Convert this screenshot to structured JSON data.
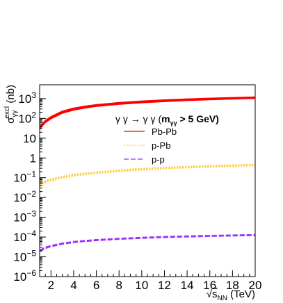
{
  "chart_data": {
    "type": "line",
    "title": "",
    "xlabel": "√s_NN (TeV)",
    "ylabel": "σ_γγ^excl (nb)",
    "xlim": [
      1,
      20
    ],
    "ylim": [
      1e-06,
      5000
    ],
    "yscale": "log",
    "x_ticks": [
      2,
      4,
      6,
      8,
      10,
      12,
      14,
      16,
      18,
      20
    ],
    "y_tick_labels": [
      {
        "value": 1e-06,
        "base": "10",
        "exp": "−6"
      },
      {
        "value": 1e-05,
        "base": "10",
        "exp": "−5"
      },
      {
        "value": 0.0001,
        "base": "10",
        "exp": "−4"
      },
      {
        "value": 0.001,
        "base": "10",
        "exp": "−3"
      },
      {
        "value": 0.01,
        "base": "10",
        "exp": "−2"
      },
      {
        "value": 0.1,
        "base": "10",
        "exp": "−1"
      },
      {
        "value": 1,
        "base": "1",
        "exp": ""
      },
      {
        "value": 10,
        "base": "10",
        "exp": ""
      },
      {
        "value": 100,
        "base": "10",
        "exp": "2"
      },
      {
        "value": 1000,
        "base": "10",
        "exp": "3"
      }
    ],
    "legend": {
      "title": "γ γ → γ γ (m_γγ > 5 GeV)",
      "position": "upper-center"
    },
    "series": [
      {
        "name": "Pb-Pb",
        "color": "#ff0000",
        "style": "solid",
        "x": [
          1,
          1.5,
          2,
          3,
          4,
          5,
          6,
          8,
          10,
          12,
          14,
          16,
          18,
          20
        ],
        "low": [
          28,
          60,
          95,
          180,
          260,
          330,
          400,
          510,
          610,
          700,
          790,
          870,
          940,
          1010
        ],
        "high": [
          38,
          80,
          125,
          235,
          335,
          420,
          500,
          640,
          760,
          870,
          970,
          1060,
          1140,
          1220
        ]
      },
      {
        "name": "p-Pb",
        "color": "#ffcc33",
        "style": "dotted",
        "x": [
          1,
          1.5,
          2,
          3,
          4,
          5,
          6,
          8,
          10,
          12,
          14,
          16,
          18,
          20
        ],
        "low": [
          0.038,
          0.055,
          0.07,
          0.095,
          0.12,
          0.14,
          0.16,
          0.2,
          0.24,
          0.28,
          0.31,
          0.34,
          0.37,
          0.4
        ],
        "high": [
          0.05,
          0.07,
          0.088,
          0.12,
          0.15,
          0.175,
          0.2,
          0.25,
          0.3,
          0.34,
          0.38,
          0.42,
          0.45,
          0.48
        ]
      },
      {
        "name": "p-p",
        "color": "#9933ff",
        "style": "dashed",
        "x": [
          1,
          1.5,
          2,
          3,
          4,
          5,
          6,
          8,
          10,
          12,
          14,
          16,
          18,
          20
        ],
        "low": [
          1.8e-05,
          2.6e-05,
          3.2e-05,
          4.3e-05,
          5.2e-05,
          5.9e-05,
          6.5e-05,
          7.6e-05,
          8.5e-05,
          9.3e-05,
          0.0001,
          0.000107,
          0.000112,
          0.000118
        ],
        "high": [
          2.2e-05,
          3.1e-05,
          3.8e-05,
          5e-05,
          6e-05,
          6.8e-05,
          7.5e-05,
          8.7e-05,
          9.8e-05,
          0.000107,
          0.000115,
          0.000122,
          0.000128,
          0.000134
        ]
      }
    ]
  }
}
